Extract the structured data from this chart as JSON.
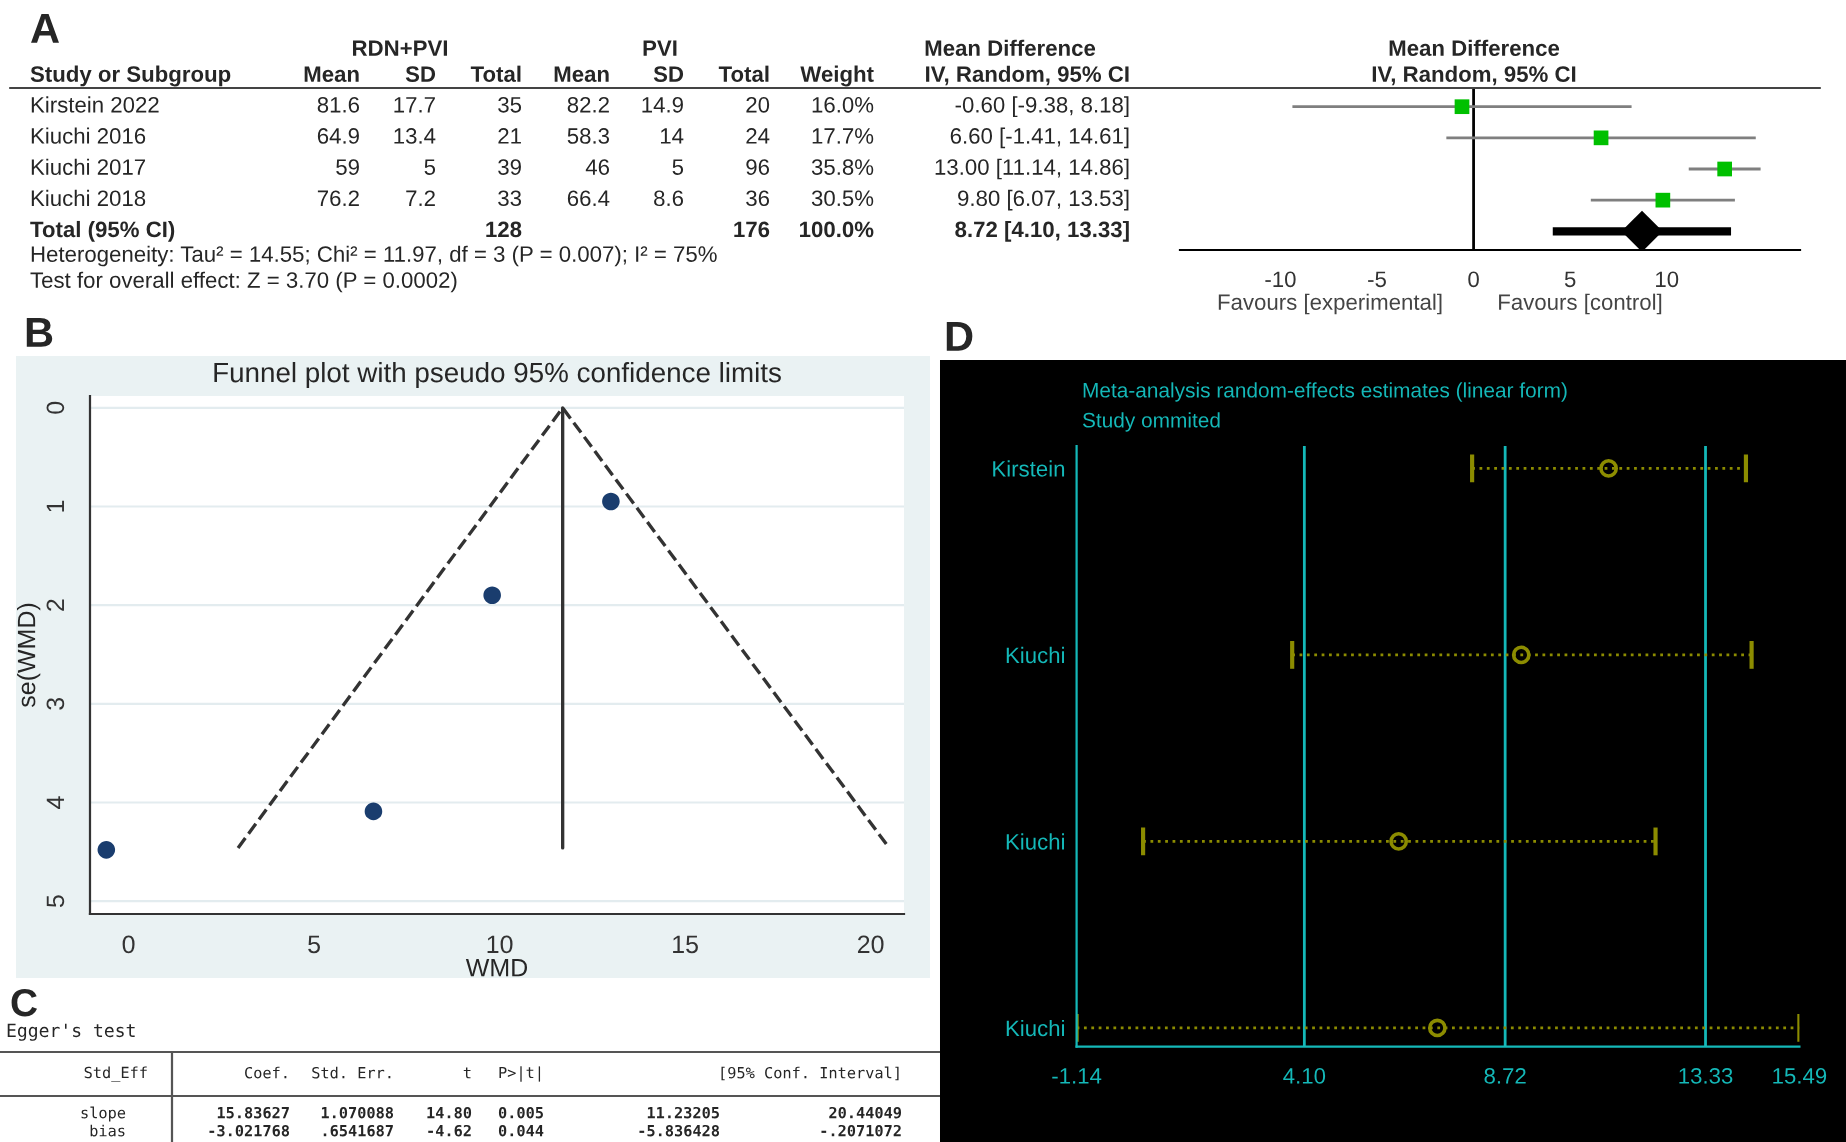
{
  "chart_data": [
    {
      "type": "scatter",
      "orientation": "horizontal",
      "categories": [
        "Kirstein 2022",
        "Kiuchi 2016",
        "Kiuchi 2017",
        "Kiuchi 2018",
        "Total (95% CI)"
      ],
      "series": [
        {
          "values": [
            -0.6,
            6.6,
            13.0,
            9.8,
            null
          ],
          "errors": [
            [
              -9.38,
              8.18
            ],
            [
              -1.41,
              14.61
            ],
            [
              11.14,
              14.86
            ],
            [
              6.07,
              13.53
            ],
            null
          ],
          "color": "#00c000",
          "marker": "square",
          "value_labels": [
            "-0.60 [-9.38, 8.18]",
            "6.60 [-1.41, 14.61]",
            "13.00 [11.14, 14.86]",
            "9.80 [6.07, 13.53]",
            null
          ]
        },
        {
          "values": [
            null,
            null,
            null,
            null,
            8.72
          ],
          "errors": [
            null,
            null,
            null,
            null,
            [
              4.1,
              13.33
            ]
          ],
          "color": "#000000",
          "marker": "diamond"
        }
      ],
      "xlim": [
        -15.2,
        16.9
      ],
      "xticks": [
        -10,
        -5,
        0,
        5,
        10
      ],
      "tick_labels": "x",
      "ref_lines": [
        {
          "axis": "x",
          "value": 0,
          "color": "#000000"
        }
      ],
      "annotations": [
        "A",
        "RDN+PVI",
        "PVI",
        "Mean Difference",
        "Mean Difference",
        "Study or Subgroup",
        "Mean",
        "SD",
        "Total",
        "Mean",
        "SD",
        "Total",
        "Weight",
        "IV, Random, 95% CI",
        "IV, Random, 95% CI",
        "81.6",
        "17.7",
        "35",
        "82.2",
        "14.9",
        "20",
        "16.0%",
        "64.9",
        "13.4",
        "21",
        "58.3",
        "14",
        "24",
        "17.7%",
        "59",
        "5",
        "39",
        "46",
        "5",
        "96",
        "35.8%",
        "76.2",
        "7.2",
        "33",
        "66.4",
        "8.6",
        "36",
        "30.5%",
        "128",
        "176",
        "100.0%",
        "Heterogeneity: Tau² = 14.55; Chi² = 11.97, df = 3 (P = 0.007); I² = 75%",
        "Test for overall effect: Z = 3.70 (P = 0.0002)",
        "Favours [experimental]",
        "Favours [control]",
        "8.72 [4.10, 13.33]"
      ]
    },
    {
      "type": "scatter",
      "title": "Funnel plot with pseudo 95% confidence limits",
      "xlabel": "WMD",
      "ylabel": "se(WMD)",
      "series": [
        {
          "type": "scatter",
          "x": [
            -0.6,
            6.6,
            9.8,
            13.0
          ],
          "values": [
            4.48,
            4.09,
            1.9,
            0.95
          ],
          "color": "#1a3d6e",
          "marker": "circle"
        },
        {
          "type": "line",
          "x": [
            2.95,
            11.7,
            20.5
          ],
          "values": [
            4.46,
            0,
            4.46
          ],
          "color": "#333333",
          "line_style": "dashed"
        },
        {
          "type": "line",
          "x": [
            11.7,
            11.7
          ],
          "values": [
            0,
            4.46
          ],
          "color": "#333333",
          "line_style": "solid"
        }
      ],
      "xlim": [
        -1.04,
        20.9
      ],
      "xticks": [
        0,
        5,
        10,
        15,
        20
      ],
      "ylim": [
        5.13,
        -0.12
      ],
      "yticks": [
        0,
        1,
        2,
        3,
        4,
        5
      ],
      "grid": "y",
      "annotations": [
        "B"
      ]
    },
    {
      "type": "other",
      "title": "Egger's test",
      "annotations": [
        "C",
        "Std_Eff",
        "Coef.",
        "Std. Err.",
        "t",
        "P>|t|",
        "[95% Conf. Interval]",
        "slope",
        "15.83627",
        "1.070088",
        "14.80",
        "0.005",
        "11.23205",
        "20.44049",
        "bias",
        "-3.021768",
        ".6541687",
        "-4.62",
        "0.044",
        "-5.836428",
        "-.2071072"
      ]
    },
    {
      "type": "scatter",
      "orientation": "horizontal",
      "title": "Meta-analysis random-effects estimates (linear form)",
      "subtitle": "Study ommited",
      "categories": [
        "Kirstein",
        "Kiuchi",
        "Kiuchi",
        "Kiuchi"
      ],
      "series": [
        {
          "values": [
            11.1,
            9.09,
            6.27,
            7.16
          ],
          "errors": [
            [
              7.96,
              14.26
            ],
            [
              3.82,
              14.39
            ],
            [
              0.39,
              12.18
            ],
            [
              -1.14,
              15.49
            ]
          ],
          "color": "#8c8c00",
          "marker": "circle",
          "line_style": "dotted"
        }
      ],
      "xlim": [
        -1.14,
        15.49
      ],
      "xticks": [
        -1.14,
        {
          "value": 4.1,
          "label": "4.10"
        },
        8.72,
        13.33,
        15.49
      ],
      "ref_lines": [
        {
          "axis": "x",
          "value": 4.1,
          "color": "#14b8b8"
        },
        {
          "axis": "x",
          "value": 8.72,
          "color": "#14b8b8"
        },
        {
          "axis": "x",
          "value": 13.33,
          "color": "#14b8b8"
        }
      ],
      "annotations": [
        "D"
      ]
    }
  ]
}
